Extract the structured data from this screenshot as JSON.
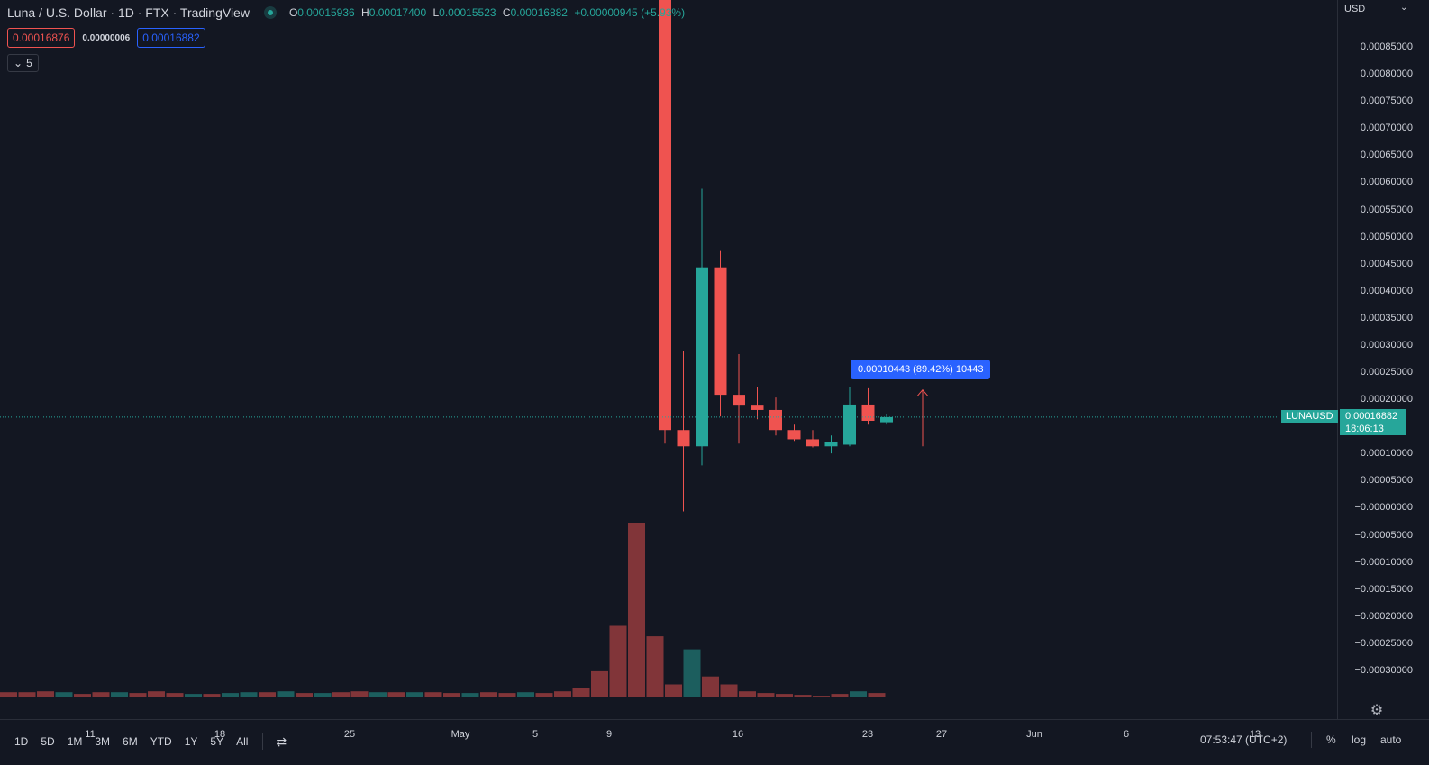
{
  "header": {
    "symbol_title": "Luna / U.S. Dollar · 1D · FTX · TradingView",
    "ohlc": [
      {
        "key": "O",
        "value": "0.00015936"
      },
      {
        "key": "H",
        "value": "0.00017400"
      },
      {
        "key": "L",
        "value": "0.00015523"
      },
      {
        "key": "C",
        "value": "0.00016882"
      },
      {
        "key": "",
        "value": "+0.00000945 (+5.93%)"
      }
    ],
    "sell_price": "0.00016876",
    "spread": "0.00000006",
    "buy_price": "0.00016882",
    "indicators_toggle": "5"
  },
  "price_axis": {
    "currency": "USD",
    "labels": [
      "0.00085000",
      "0.00080000",
      "0.00075000",
      "0.00070000",
      "0.00065000",
      "0.00060000",
      "0.00055000",
      "0.00050000",
      "0.00045000",
      "0.00040000",
      "0.00035000",
      "0.00030000",
      "0.00025000",
      "0.00020000",
      "0.00010000",
      "0.00005000",
      "−0.00000000",
      "−0.00005000",
      "−0.00010000",
      "−0.00015000",
      "−0.00020000",
      "−0.00025000",
      "−0.00030000"
    ],
    "last_price": "0.00016882",
    "countdown": "18:06:13",
    "symbol_tag": "LUNAUSD"
  },
  "time_axis": {
    "labels": [
      "11",
      "18",
      "25",
      "May",
      "5",
      "9",
      "16",
      "23",
      "27",
      "Jun",
      "6",
      "13"
    ]
  },
  "measure_tool": {
    "label": "0.00010443 (89.42%) 10443"
  },
  "colors": {
    "background": "#131722",
    "up": "#26a69a",
    "down": "#ef5350",
    "accent": "#2962ff"
  },
  "chart_data": {
    "type": "candlestick",
    "x_label_series": "dates",
    "candles": [
      {
        "date": "May 10",
        "open": 0.00097,
        "high": 0.00097,
        "low": 0.00012,
        "close": 0.000145
      },
      {
        "date": "May 11",
        "open": 0.000145,
        "high": 0.00029,
        "low": -5e-06,
        "close": 0.000115
      },
      {
        "date": "May 12",
        "open": 0.000115,
        "high": 0.00059,
        "low": 8e-05,
        "close": 0.000445
      },
      {
        "date": "May 13",
        "open": 0.000445,
        "high": 0.000475,
        "low": 0.00017,
        "close": 0.00021
      },
      {
        "date": "May 14",
        "open": 0.00021,
        "high": 0.000285,
        "low": 0.00012,
        "close": 0.00019
      },
      {
        "date": "May 15",
        "open": 0.00019,
        "high": 0.000225,
        "low": 0.000165,
        "close": 0.000182
      },
      {
        "date": "May 16",
        "open": 0.000182,
        "high": 0.000205,
        "low": 0.000135,
        "close": 0.000145
      },
      {
        "date": "May 17",
        "open": 0.000145,
        "high": 0.000155,
        "low": 0.000125,
        "close": 0.000128
      },
      {
        "date": "May 18",
        "open": 0.000128,
        "high": 0.000145,
        "low": 0.000113,
        "close": 0.000115
      },
      {
        "date": "May 19",
        "open": 0.000115,
        "high": 0.000135,
        "low": 0.000102,
        "close": 0.000123
      },
      {
        "date": "May 20",
        "open": 0.000118,
        "high": 0.000225,
        "low": 0.000115,
        "close": 0.000192
      },
      {
        "date": "May 21",
        "open": 0.000192,
        "high": 0.000222,
        "low": 0.000155,
        "close": 0.000162
      },
      {
        "date": "May 22",
        "open": 0.00015936,
        "high": 0.000174,
        "low": 0.00015523,
        "close": 0.00016882
      }
    ],
    "volume_bars": [
      {
        "dir": "down",
        "v": 0.06
      },
      {
        "dir": "down",
        "v": 0.06
      },
      {
        "dir": "down",
        "v": 0.07
      },
      {
        "dir": "up",
        "v": 0.06
      },
      {
        "dir": "down",
        "v": 0.04
      },
      {
        "dir": "down",
        "v": 0.06
      },
      {
        "dir": "up",
        "v": 0.06
      },
      {
        "dir": "down",
        "v": 0.05
      },
      {
        "dir": "down",
        "v": 0.07
      },
      {
        "dir": "down",
        "v": 0.05
      },
      {
        "dir": "up",
        "v": 0.04
      },
      {
        "dir": "down",
        "v": 0.04
      },
      {
        "dir": "up",
        "v": 0.05
      },
      {
        "dir": "up",
        "v": 0.06
      },
      {
        "dir": "down",
        "v": 0.06
      },
      {
        "dir": "up",
        "v": 0.07
      },
      {
        "dir": "down",
        "v": 0.05
      },
      {
        "dir": "up",
        "v": 0.05
      },
      {
        "dir": "down",
        "v": 0.06
      },
      {
        "dir": "down",
        "v": 0.07
      },
      {
        "dir": "up",
        "v": 0.06
      },
      {
        "dir": "down",
        "v": 0.06
      },
      {
        "dir": "up",
        "v": 0.06
      },
      {
        "dir": "down",
        "v": 0.06
      },
      {
        "dir": "down",
        "v": 0.05
      },
      {
        "dir": "up",
        "v": 0.05
      },
      {
        "dir": "down",
        "v": 0.06
      },
      {
        "dir": "down",
        "v": 0.05
      },
      {
        "dir": "up",
        "v": 0.06
      },
      {
        "dir": "down",
        "v": 0.05
      },
      {
        "dir": "down",
        "v": 0.07
      },
      {
        "dir": "down",
        "v": 0.11
      },
      {
        "dir": "down",
        "v": 0.3
      },
      {
        "dir": "down",
        "v": 0.82
      },
      {
        "dir": "down",
        "v": 2.0
      },
      {
        "dir": "down",
        "v": 0.7
      },
      {
        "dir": "down",
        "v": 0.15
      },
      {
        "dir": "up",
        "v": 0.55
      },
      {
        "dir": "down",
        "v": 0.24
      },
      {
        "dir": "down",
        "v": 0.15
      },
      {
        "dir": "down",
        "v": 0.07
      },
      {
        "dir": "down",
        "v": 0.05
      },
      {
        "dir": "down",
        "v": 0.04
      },
      {
        "dir": "down",
        "v": 0.03
      },
      {
        "dir": "down",
        "v": 0.02
      },
      {
        "dir": "down",
        "v": 0.04
      },
      {
        "dir": "up",
        "v": 0.07
      },
      {
        "dir": "down",
        "v": 0.05
      },
      {
        "dir": "up",
        "v": 0.01
      }
    ],
    "ylim": [
      -0.00034,
      0.00097
    ],
    "last_price_value": 0.00016882,
    "arrow": {
      "from": 0.000115,
      "to": 0.000219
    }
  },
  "bottom_bar": {
    "ranges": [
      "1D",
      "5D",
      "1M",
      "3M",
      "6M",
      "YTD",
      "1Y",
      "5Y",
      "All"
    ],
    "clock": "07:53:47 (UTC+2)",
    "percent": "%",
    "log": "log",
    "auto": "auto"
  }
}
